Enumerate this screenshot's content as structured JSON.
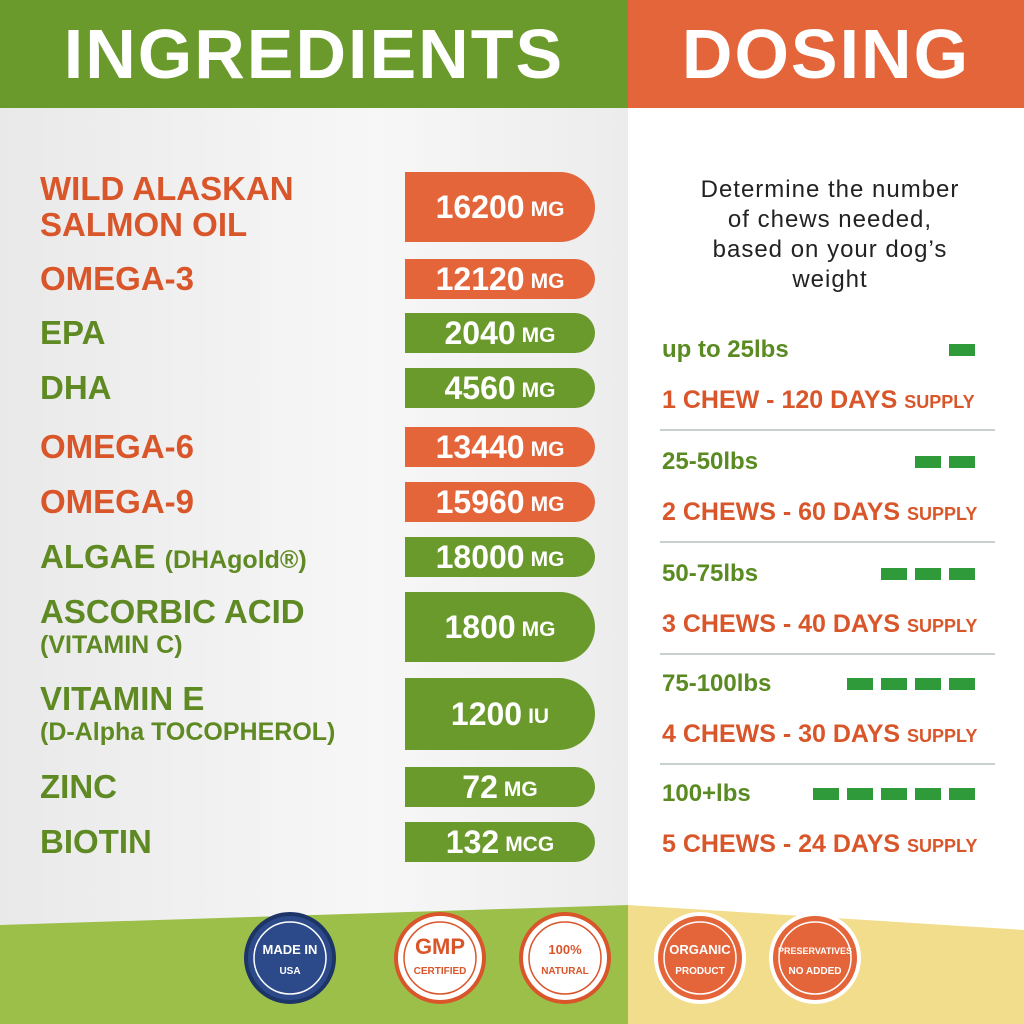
{
  "ingredients": {
    "title": "INGREDIENTS",
    "items": [
      {
        "name": "WILD ALASKAN SALMON OIL",
        "amount": 16200,
        "unit": "MG",
        "color": "orange"
      },
      {
        "name": "OMEGA-3",
        "amount": 12120,
        "unit": "MG",
        "color": "orange"
      },
      {
        "name": "EPA",
        "amount": 2040,
        "unit": "MG",
        "color": "green"
      },
      {
        "name": "DHA",
        "amount": 4560,
        "unit": "MG",
        "color": "green"
      },
      {
        "name": "OMEGA-6",
        "amount": 13440,
        "unit": "MG",
        "color": "orange"
      },
      {
        "name": "OMEGA-9",
        "amount": 15960,
        "unit": "MG",
        "color": "orange"
      },
      {
        "name": "ALGAE",
        "sub": "(DHAgold®)",
        "amount": 18000,
        "unit": "MG",
        "color": "green"
      },
      {
        "name": "ASCORBIC ACID",
        "sub": "(VITAMIN C)",
        "amount": 1800,
        "unit": "MG",
        "color": "green"
      },
      {
        "name": "VITAMIN E",
        "sub": "(D-Alpha TOCOPHEROL)",
        "amount": 1200,
        "unit": "IU",
        "color": "green"
      },
      {
        "name": "ZINC",
        "amount": 72,
        "unit": "MG",
        "color": "green"
      },
      {
        "name": "BIOTIN",
        "amount": 132,
        "unit": "MCG",
        "color": "green"
      }
    ]
  },
  "dosing": {
    "title": "DOSING",
    "intro": "Determine the number of chews needed, based on your dog’s weight",
    "tiers": [
      {
        "weight": "up to 25lbs",
        "chews": 1,
        "dose": "1 CHEW - 120 DAYS",
        "supply": "SUPPLY"
      },
      {
        "weight": "25-50lbs",
        "chews": 2,
        "dose": "2 CHEWS - 60 DAYS",
        "supply": "SUPPLY"
      },
      {
        "weight": "50-75lbs",
        "chews": 3,
        "dose": "3 CHEWS - 40 DAYS",
        "supply": "SUPPLY"
      },
      {
        "weight": "75-100lbs",
        "chews": 4,
        "dose": "4 CHEWS - 30 DAYS",
        "supply": "SUPPLY"
      },
      {
        "weight": "100+lbs",
        "chews": 5,
        "dose": "5 CHEWS - 24 DAYS",
        "supply": "SUPPLY"
      }
    ]
  },
  "badges": [
    {
      "top": "MADE IN",
      "bottom": "USA"
    },
    {
      "top": "GMP",
      "bottom": "CERTIFIED"
    },
    {
      "top": "100%",
      "bottom": "NATURAL"
    },
    {
      "top": "ORGANIC",
      "bottom": "PRODUCT"
    },
    {
      "top": "PRESERVATIVES",
      "bottom": "NO ADDED"
    }
  ]
}
